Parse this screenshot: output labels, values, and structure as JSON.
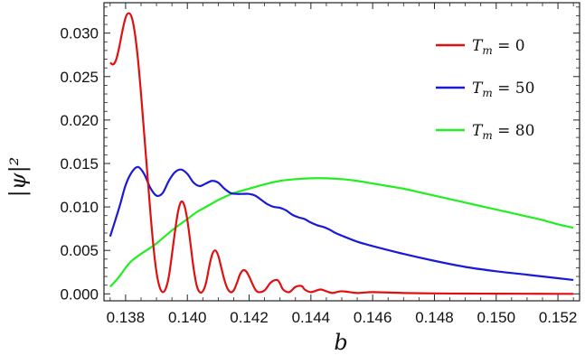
{
  "chart_data": {
    "type": "line",
    "title": "",
    "xlabel": "b",
    "ylabel": "|ψ|²",
    "xlim": [
      0.1373,
      0.1527
    ],
    "ylim": [
      -0.0008,
      0.0335
    ],
    "xticks": [
      "0.138",
      "0.140",
      "0.142",
      "0.144",
      "0.146",
      "0.148",
      "0.150",
      "0.152"
    ],
    "xtick_values": [
      0.138,
      0.14,
      0.142,
      0.144,
      0.146,
      0.148,
      0.15,
      0.152
    ],
    "yticks": [
      "0.000",
      "0.005",
      "0.010",
      "0.015",
      "0.020",
      "0.025",
      "0.030"
    ],
    "ytick_values": [
      0.0,
      0.005,
      0.01,
      0.015,
      0.02,
      0.025,
      0.03
    ],
    "grid": false,
    "legend_position": "top-right",
    "series": [
      {
        "name": "T_m = 0",
        "legend_label": "T",
        "legend_sub": "m",
        "legend_value": " = 0",
        "color": "#e01010",
        "x": [
          0.1375,
          0.1376,
          0.1377,
          0.1378,
          0.1379,
          0.138,
          0.1381,
          0.1382,
          0.1383,
          0.1384,
          0.1385,
          0.1386,
          0.1387,
          0.1388,
          0.1389,
          0.139,
          0.1391,
          0.1392,
          0.1393,
          0.1394,
          0.1395,
          0.1396,
          0.1397,
          0.1398,
          0.1399,
          0.14,
          0.1401,
          0.1402,
          0.1403,
          0.1404,
          0.1405,
          0.1406,
          0.1407,
          0.1408,
          0.1409,
          0.141,
          0.1411,
          0.1412,
          0.1413,
          0.1414,
          0.1415,
          0.1416,
          0.1417,
          0.1418,
          0.1419,
          0.142,
          0.1421,
          0.1422,
          0.1423,
          0.1425,
          0.1427,
          0.1429,
          0.143,
          0.1431,
          0.1433,
          0.1435,
          0.1437,
          0.1438,
          0.144,
          0.1443,
          0.1445,
          0.1447,
          0.145,
          0.1455,
          0.146,
          0.147,
          0.148,
          0.149,
          0.15,
          0.151,
          0.152,
          0.1525
        ],
        "y": [
          0.0266,
          0.0264,
          0.027,
          0.0285,
          0.0303,
          0.0318,
          0.0323,
          0.0318,
          0.03,
          0.027,
          0.023,
          0.0185,
          0.014,
          0.0095,
          0.0055,
          0.0025,
          0.0008,
          0.0002,
          0.0006,
          0.002,
          0.0045,
          0.0072,
          0.0095,
          0.0106,
          0.0102,
          0.0085,
          0.0058,
          0.003,
          0.001,
          0.0002,
          0.0003,
          0.0012,
          0.003,
          0.0045,
          0.005,
          0.0044,
          0.003,
          0.0016,
          0.0006,
          0.0002,
          0.0004,
          0.0012,
          0.0022,
          0.0027,
          0.0026,
          0.002,
          0.0012,
          0.0005,
          0.0002,
          0.0004,
          0.0013,
          0.0016,
          0.0012,
          0.0005,
          0.0002,
          0.0008,
          0.0009,
          0.0005,
          0.0002,
          0.0005,
          0.0003,
          0.0001,
          0.0003,
          0.0001,
          0.0002,
          0.0001,
          5e-05,
          3e-05,
          2e-05,
          1e-05,
          0.0,
          0.0
        ]
      },
      {
        "name": "T_m = 50",
        "legend_label": "T",
        "legend_sub": "m",
        "legend_value": " = 50",
        "color": "#1a1ad6",
        "x": [
          0.1375,
          0.1378,
          0.138,
          0.1382,
          0.1384,
          0.1386,
          0.1388,
          0.139,
          0.1392,
          0.1394,
          0.1396,
          0.1398,
          0.14,
          0.1402,
          0.1404,
          0.1406,
          0.1408,
          0.141,
          0.1412,
          0.1414,
          0.1416,
          0.1418,
          0.142,
          0.1422,
          0.1424,
          0.1426,
          0.1428,
          0.143,
          0.1432,
          0.1434,
          0.1436,
          0.1438,
          0.144,
          0.1442,
          0.1444,
          0.1446,
          0.1448,
          0.145,
          0.1455,
          0.146,
          0.147,
          0.148,
          0.149,
          0.15,
          0.151,
          0.152,
          0.1525
        ],
        "y": [
          0.0066,
          0.01,
          0.0125,
          0.014,
          0.0146,
          0.0138,
          0.0122,
          0.0113,
          0.0116,
          0.013,
          0.014,
          0.0143,
          0.0138,
          0.0128,
          0.0124,
          0.0127,
          0.013,
          0.0128,
          0.0121,
          0.0116,
          0.0115,
          0.0115,
          0.0115,
          0.0113,
          0.0108,
          0.0103,
          0.01,
          0.0099,
          0.0096,
          0.0091,
          0.0088,
          0.0086,
          0.0082,
          0.0079,
          0.0077,
          0.0074,
          0.007,
          0.0067,
          0.006,
          0.0055,
          0.0046,
          0.0038,
          0.0031,
          0.0026,
          0.0022,
          0.0018,
          0.0016
        ]
      },
      {
        "name": "T_m = 80",
        "legend_label": "T",
        "legend_sub": "m",
        "legend_value": " = 80",
        "color": "#22ee22",
        "x": [
          0.1375,
          0.1378,
          0.138,
          0.1382,
          0.1385,
          0.1388,
          0.139,
          0.1393,
          0.1395,
          0.1398,
          0.14,
          0.1403,
          0.1405,
          0.1408,
          0.141,
          0.1413,
          0.1415,
          0.1418,
          0.142,
          0.1425,
          0.143,
          0.1435,
          0.144,
          0.1445,
          0.145,
          0.1455,
          0.146,
          0.1465,
          0.147,
          0.1475,
          0.148,
          0.1485,
          0.149,
          0.1495,
          0.15,
          0.1505,
          0.151,
          0.1515,
          0.152,
          0.1525
        ],
        "y": [
          0.0008,
          0.002,
          0.003,
          0.0038,
          0.0046,
          0.0053,
          0.0058,
          0.0067,
          0.0073,
          0.0081,
          0.0086,
          0.0094,
          0.0098,
          0.0104,
          0.0108,
          0.0113,
          0.0116,
          0.0119,
          0.0121,
          0.0126,
          0.013,
          0.0132,
          0.0133,
          0.0133,
          0.0132,
          0.013,
          0.0127,
          0.0124,
          0.0121,
          0.0117,
          0.0113,
          0.0109,
          0.0105,
          0.0101,
          0.0097,
          0.0093,
          0.0089,
          0.0085,
          0.008,
          0.0076
        ]
      }
    ]
  }
}
